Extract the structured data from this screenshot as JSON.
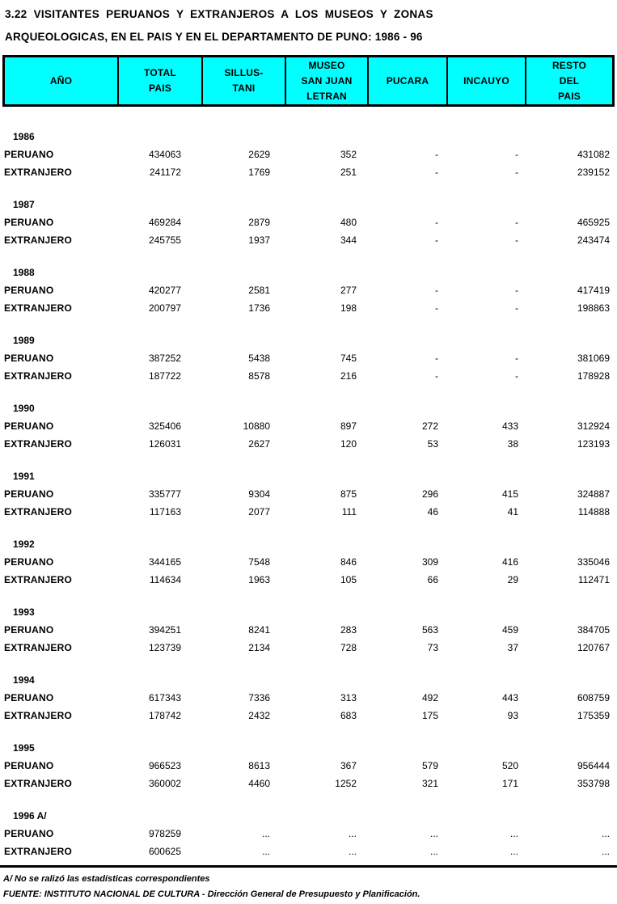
{
  "title": {
    "line1": "3.22  VISITANTES  PERUANOS  Y  EXTRANJEROS  A  LOS  MUSEOS  Y  ZONAS",
    "line2": "ARQUEOLOGICAS, EN EL PAIS Y EN EL DEPARTAMENTO DE PUNO: 1986 - 96"
  },
  "colors": {
    "header_bg": "#00FFFF",
    "border": "#000000",
    "text": "#000000"
  },
  "table": {
    "columns": [
      {
        "lines": [
          "AÑO"
        ]
      },
      {
        "lines": [
          "TOTAL",
          "PAIS"
        ]
      },
      {
        "lines": [
          "SILLUS-",
          "TANI"
        ]
      },
      {
        "lines": [
          "MUSEO",
          "SAN JUAN",
          "LETRAN"
        ]
      },
      {
        "lines": [
          "PUCARA"
        ]
      },
      {
        "lines": [
          "INCAUYO"
        ]
      },
      {
        "lines": [
          "RESTO",
          "DEL",
          "PAIS"
        ]
      }
    ],
    "row_labels": {
      "peruano": "PERUANO",
      "extranjero": "EXTRANJERO"
    },
    "years": [
      {
        "year": "1986",
        "peruano": [
          "434063",
          "2629",
          "352",
          "-",
          "-",
          "431082"
        ],
        "extranjero": [
          "241172",
          "1769",
          "251",
          "-",
          "-",
          "239152"
        ]
      },
      {
        "year": "1987",
        "peruano": [
          "469284",
          "2879",
          "480",
          "-",
          "-",
          "465925"
        ],
        "extranjero": [
          "245755",
          "1937",
          "344",
          "-",
          "-",
          "243474"
        ]
      },
      {
        "year": "1988",
        "peruano": [
          "420277",
          "2581",
          "277",
          "-",
          "-",
          "417419"
        ],
        "extranjero": [
          "200797",
          "1736",
          "198",
          "-",
          "-",
          "198863"
        ]
      },
      {
        "year": "1989",
        "peruano": [
          "387252",
          "5438",
          "745",
          "-",
          "-",
          "381069"
        ],
        "extranjero": [
          "187722",
          "8578",
          "216",
          "-",
          "-",
          "178928"
        ]
      },
      {
        "year": "1990",
        "peruano": [
          "325406",
          "10880",
          "897",
          "272",
          "433",
          "312924"
        ],
        "extranjero": [
          "126031",
          "2627",
          "120",
          "53",
          "38",
          "123193"
        ]
      },
      {
        "year": "1991",
        "peruano": [
          "335777",
          "9304",
          "875",
          "296",
          "415",
          "324887"
        ],
        "extranjero": [
          "117163",
          "2077",
          "111",
          "46",
          "41",
          "114888"
        ]
      },
      {
        "year": "1992",
        "peruano": [
          "344165",
          "7548",
          "846",
          "309",
          "416",
          "335046"
        ],
        "extranjero": [
          "114634",
          "1963",
          "105",
          "66",
          "29",
          "112471"
        ]
      },
      {
        "year": "1993",
        "peruano": [
          "394251",
          "8241",
          "283",
          "563",
          "459",
          "384705"
        ],
        "extranjero": [
          "123739",
          "2134",
          "728",
          "73",
          "37",
          "120767"
        ]
      },
      {
        "year": "1994",
        "peruano": [
          "617343",
          "7336",
          "313",
          "492",
          "443",
          "608759"
        ],
        "extranjero": [
          "178742",
          "2432",
          "683",
          "175",
          "93",
          "175359"
        ]
      },
      {
        "year": "1995",
        "peruano": [
          "966523",
          "8613",
          "367",
          "579",
          "520",
          "956444"
        ],
        "extranjero": [
          "360002",
          "4460",
          "1252",
          "321",
          "171",
          "353798"
        ]
      },
      {
        "year": "1996 A/",
        "peruano": [
          "978259",
          "...",
          "...",
          "...",
          "...",
          "..."
        ],
        "extranjero": [
          "600625",
          "...",
          "...",
          "...",
          "...",
          "..."
        ]
      }
    ]
  },
  "footnotes": {
    "note": "A/ No se ralizó las estadísticas correspondientes",
    "source": "FUENTE: INSTITUTO NACIONAL DE CULTURA - Dirección General de Presupuesto y Planificación."
  }
}
